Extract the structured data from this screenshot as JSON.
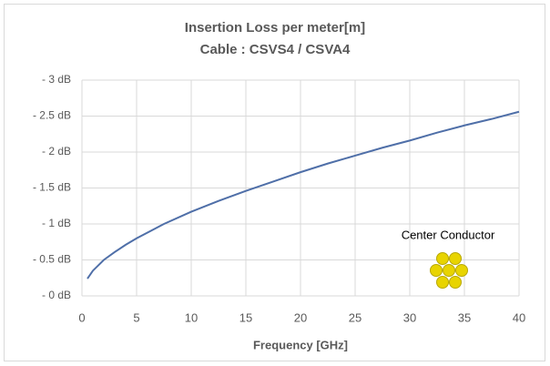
{
  "chart_data": {
    "type": "line",
    "title": "Insertion Loss per meter[m]",
    "subtitle": "Cable : CSVS4 / CSVA4",
    "x_label": "Frequency [GHz]",
    "annotation": "Center Conductor",
    "x": [
      0.5,
      1,
      2,
      3,
      4,
      5,
      7.5,
      10,
      12.5,
      15,
      17.5,
      20,
      22.5,
      25,
      27.5,
      30,
      32.5,
      35,
      37.5,
      40
    ],
    "series": [
      {
        "color": "#4f6fa8",
        "values": [
          0.24,
          0.35,
          0.5,
          0.61,
          0.71,
          0.8,
          1.0,
          1.17,
          1.32,
          1.46,
          1.59,
          1.72,
          1.84,
          1.95,
          2.06,
          2.16,
          2.27,
          2.37,
          2.46,
          2.56
        ]
      }
    ],
    "xlim": [
      0,
      40
    ],
    "xticks": [
      0,
      5,
      10,
      15,
      20,
      25,
      30,
      35,
      40
    ],
    "ylim": [
      0,
      3
    ],
    "yticks": [
      {
        "value": 0,
        "label": "- 0 dB"
      },
      {
        "value": 0.5,
        "label": "- 0.5 dB"
      },
      {
        "value": 1,
        "label": "- 1 dB"
      },
      {
        "value": 1.5,
        "label": "- 1.5 dB"
      },
      {
        "value": 2,
        "label": "- 2 dB"
      },
      {
        "value": 2.5,
        "label": "- 2.5 dB"
      },
      {
        "value": 3,
        "label": "- 3 dB"
      }
    ],
    "grid": true
  }
}
